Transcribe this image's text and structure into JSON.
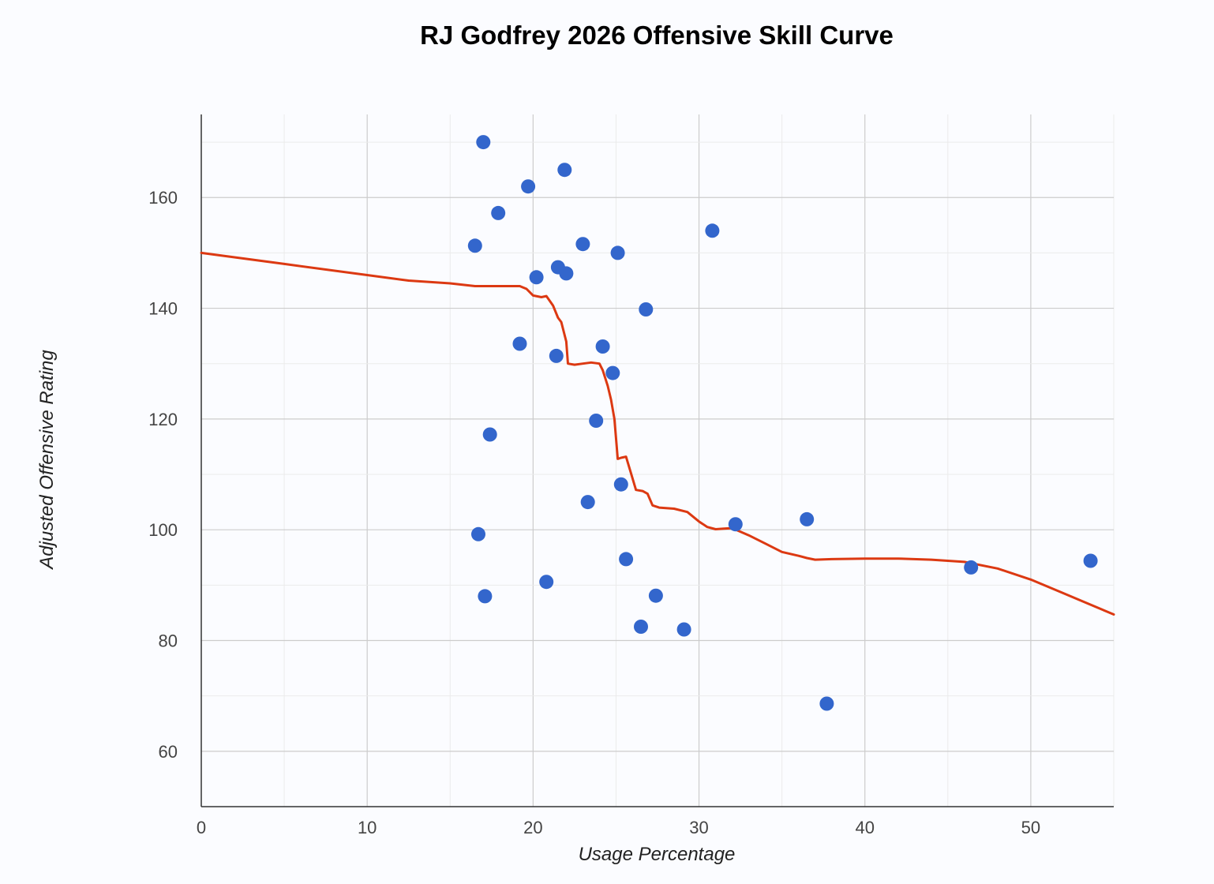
{
  "chart_data": {
    "type": "scatter",
    "title": "RJ Godfrey 2026 Offensive Skill Curve",
    "xlabel": "Usage Percentage",
    "ylabel": "Adjusted Offensive Rating",
    "xlim": [
      0,
      55
    ],
    "ylim": [
      50,
      175
    ],
    "x_ticks": [
      0,
      10,
      20,
      30,
      40,
      50
    ],
    "y_ticks": [
      60,
      80,
      100,
      120,
      140,
      160
    ],
    "x_minor_step": 5,
    "y_minor_step": 10,
    "grid": true,
    "legend": "none",
    "colors": {
      "points": "#3366cc",
      "curve": "#dc3912",
      "background": "#fbfcff"
    },
    "series": [
      {
        "kind": "points",
        "x": [
          17.0,
          21.9,
          19.7,
          17.9,
          30.8,
          16.5,
          23.0,
          25.1,
          21.5,
          22.0,
          20.2,
          26.8,
          19.2,
          24.2,
          21.4,
          24.8,
          23.8,
          17.4,
          25.3,
          23.3,
          32.2,
          36.5,
          16.7,
          25.6,
          46.4,
          53.6,
          20.8,
          17.1,
          27.4,
          26.5,
          29.1,
          37.7
        ],
        "y": [
          170.0,
          165.0,
          162.0,
          157.2,
          154.0,
          151.3,
          151.6,
          150.0,
          147.4,
          146.3,
          145.6,
          139.8,
          133.6,
          133.1,
          131.4,
          128.3,
          119.7,
          117.2,
          108.2,
          105.0,
          101.0,
          101.9,
          99.2,
          94.7,
          93.2,
          94.4,
          90.6,
          88.0,
          88.1,
          82.5,
          82.0,
          68.6
        ]
      },
      {
        "kind": "curve",
        "x": [
          0,
          5,
          10,
          12.5,
          15,
          16.5,
          18,
          19.2,
          19.6,
          20,
          20.5,
          20.8,
          21.2,
          21.5,
          21.7,
          22,
          22.1,
          22.5,
          23,
          23.5,
          24,
          24.2,
          24.5,
          24.7,
          24.9,
          25.1,
          25.3,
          25.6,
          25.9,
          26.2,
          26.6,
          26.9,
          27.2,
          27.6,
          28.5,
          29.3,
          30,
          30.5,
          31,
          31.5,
          32,
          33,
          34,
          35,
          36,
          36.5,
          37,
          38,
          40,
          42,
          44,
          46,
          48,
          50,
          52,
          55
        ],
        "y": [
          150,
          148,
          146,
          145,
          144.5,
          144,
          144,
          144,
          143.5,
          142.3,
          142,
          142.2,
          140.5,
          138.3,
          137.5,
          134,
          130,
          129.8,
          130,
          130.2,
          130,
          128.8,
          126,
          123.5,
          120,
          112.8,
          113,
          113.2,
          110.2,
          107.2,
          107,
          106.5,
          104.4,
          104,
          103.8,
          103.2,
          101.5,
          100.5,
          100.1,
          100.2,
          100.3,
          99,
          97.5,
          96,
          95.3,
          94.9,
          94.6,
          94.7,
          94.8,
          94.8,
          94.6,
          94.2,
          93,
          91,
          88.5,
          84.7
        ]
      }
    ]
  }
}
